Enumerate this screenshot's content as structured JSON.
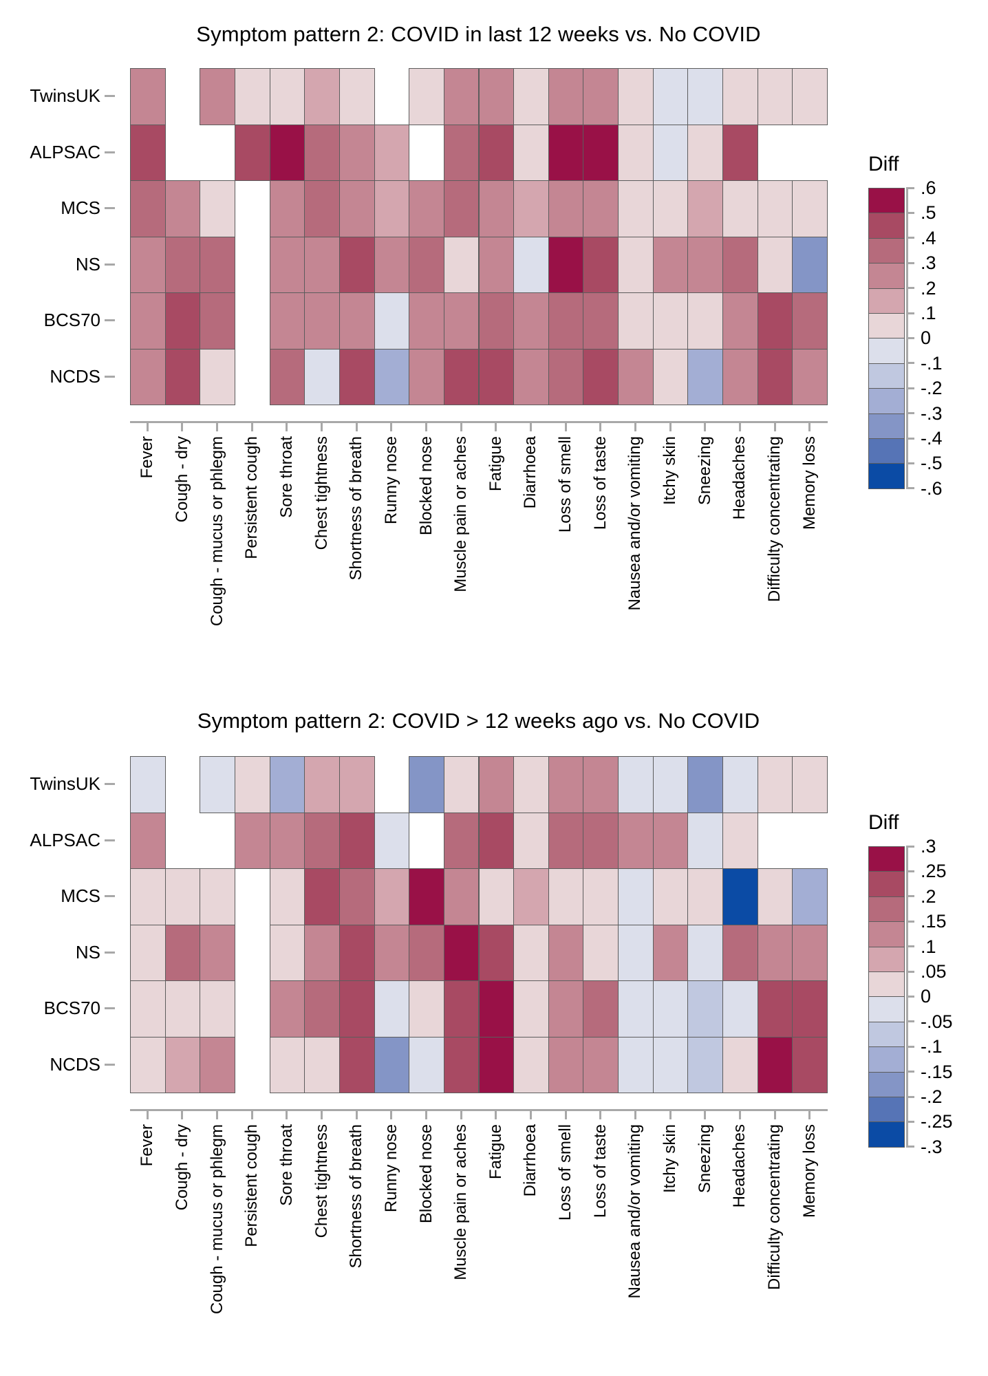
{
  "page": {
    "background": "#ffffff"
  },
  "palette": [
    "#991147",
    "#a84a63",
    "#b66b7c",
    "#c48693",
    "#d4a6af",
    "#e8d6d8",
    "#dcdfeb",
    "#c0c8e0",
    "#a3aed4",
    "#8495c6",
    "#5674b6",
    "#0b4ba5"
  ],
  "cohorts": [
    "TwinsUK",
    "ALPSAC",
    "MCS",
    "NS",
    "BCS70",
    "NCDS"
  ],
  "symptoms": [
    "Fever",
    "Cough - dry",
    "Cough - mucus or phlegm",
    "Persistent cough",
    "Sore throat",
    "Chest tightness",
    "Shortness of breath",
    "Runny nose",
    "Blocked nose",
    "Muscle pain or aches",
    "Fatigue",
    "Diarrhoea",
    "Loss of smell",
    "Loss of taste",
    "Nausea and/or vomiting",
    "Itchy skin",
    "Sneezing",
    "Headaches",
    "Difficulty concentrating",
    "Memory loss"
  ],
  "chart_data": [
    {
      "type": "heatmap",
      "title": "Symptom pattern 2: COVID in last 12 weeks vs. No COVID",
      "legend_title": "Diff",
      "legend_ticks": [
        ".6",
        ".5",
        ".4",
        ".3",
        ".2",
        ".1",
        "0",
        "-.1",
        "-.2",
        "-.3",
        "-.4",
        "-.5",
        "-.6"
      ],
      "scale_max": 0.6,
      "scale_step": 0.1,
      "rows": [
        "TwinsUK",
        "ALPSAC",
        "MCS",
        "NS",
        "BCS70",
        "NCDS"
      ],
      "columns": [
        "Fever",
        "Cough - dry",
        "Cough - mucus or phlegm",
        "Persistent cough",
        "Sore throat",
        "Chest tightness",
        "Shortness of breath",
        "Runny nose",
        "Blocked nose",
        "Muscle pain or aches",
        "Fatigue",
        "Diarrhoea",
        "Loss of smell",
        "Loss of taste",
        "Nausea and/or vomiting",
        "Itchy skin",
        "Sneezing",
        "Headaches",
        "Difficulty concentrating",
        "Memory loss"
      ],
      "values": [
        [
          0.25,
          null,
          0.25,
          0.05,
          0.05,
          0.15,
          0.05,
          null,
          0.05,
          0.25,
          0.25,
          0.05,
          0.25,
          0.25,
          0.05,
          -0.05,
          -0.05,
          0.05,
          0.05,
          0.05
        ],
        [
          0.45,
          null,
          null,
          0.45,
          0.55,
          0.35,
          0.25,
          0.15,
          null,
          0.35,
          0.45,
          0.05,
          0.55,
          0.55,
          0.05,
          -0.05,
          0.05,
          0.45,
          null,
          null
        ],
        [
          0.35,
          0.25,
          0.05,
          null,
          0.25,
          0.35,
          0.25,
          0.15,
          0.25,
          0.35,
          0.25,
          0.15,
          0.25,
          0.25,
          0.05,
          0.05,
          0.15,
          0.05,
          0.05,
          0.05
        ],
        [
          0.25,
          0.35,
          0.35,
          null,
          0.25,
          0.25,
          0.45,
          0.25,
          0.35,
          0.05,
          0.25,
          -0.05,
          0.55,
          0.45,
          0.05,
          0.25,
          0.25,
          0.35,
          0.05,
          -0.35
        ],
        [
          0.25,
          0.45,
          0.35,
          null,
          0.25,
          0.25,
          0.25,
          -0.05,
          0.25,
          0.25,
          0.35,
          0.25,
          0.35,
          0.35,
          0.05,
          0.05,
          0.05,
          0.25,
          0.45,
          0.35
        ],
        [
          0.25,
          0.45,
          0.05,
          null,
          0.35,
          -0.05,
          0.45,
          -0.25,
          0.25,
          0.45,
          0.45,
          0.25,
          0.35,
          0.45,
          0.25,
          0.05,
          -0.25,
          0.25,
          0.45,
          0.25
        ]
      ]
    },
    {
      "type": "heatmap",
      "title": "Symptom pattern 2: COVID > 12 weeks ago vs. No COVID",
      "legend_title": "Diff",
      "legend_ticks": [
        ".3",
        ".25",
        ".2",
        ".15",
        ".1",
        ".05",
        "0",
        "-.05",
        "-.1",
        "-.15",
        "-.2",
        "-.25",
        "-.3"
      ],
      "scale_max": 0.3,
      "scale_step": 0.05,
      "rows": [
        "TwinsUK",
        "ALPSAC",
        "MCS",
        "NS",
        "BCS70",
        "NCDS"
      ],
      "columns": [
        "Fever",
        "Cough - dry",
        "Cough - mucus or phlegm",
        "Persistent cough",
        "Sore throat",
        "Chest tightness",
        "Shortness of breath",
        "Runny nose",
        "Blocked nose",
        "Muscle pain or aches",
        "Fatigue",
        "Diarrhoea",
        "Loss of smell",
        "Loss of taste",
        "Nausea and/or vomiting",
        "Itchy skin",
        "Sneezing",
        "Headaches",
        "Difficulty concentrating",
        "Memory loss"
      ],
      "values": [
        [
          -0.025,
          null,
          -0.025,
          0.025,
          -0.125,
          0.075,
          0.075,
          null,
          -0.175,
          0.025,
          0.125,
          0.025,
          0.125,
          0.125,
          -0.025,
          -0.025,
          -0.175,
          -0.025,
          0.025,
          0.025
        ],
        [
          0.125,
          null,
          null,
          0.125,
          0.125,
          0.175,
          0.225,
          -0.025,
          null,
          0.175,
          0.225,
          0.025,
          0.175,
          0.175,
          0.125,
          0.125,
          -0.025,
          0.025,
          null,
          null
        ],
        [
          0.025,
          0.025,
          0.025,
          null,
          0.025,
          0.225,
          0.175,
          0.075,
          0.275,
          0.125,
          0.025,
          0.075,
          0.025,
          0.025,
          -0.025,
          0.025,
          0.025,
          -0.275,
          0.025,
          -0.125
        ],
        [
          0.025,
          0.175,
          0.125,
          null,
          0.025,
          0.125,
          0.225,
          0.125,
          0.175,
          0.275,
          0.225,
          0.025,
          0.125,
          0.025,
          -0.025,
          0.125,
          -0.025,
          0.175,
          0.125,
          0.125
        ],
        [
          0.025,
          0.025,
          0.025,
          null,
          0.125,
          0.175,
          0.225,
          -0.025,
          0.025,
          0.225,
          0.275,
          0.025,
          0.125,
          0.175,
          -0.025,
          -0.025,
          -0.075,
          -0.025,
          0.225,
          0.225
        ],
        [
          0.025,
          0.075,
          0.125,
          null,
          0.025,
          0.025,
          0.225,
          -0.175,
          -0.025,
          0.225,
          0.275,
          0.025,
          0.125,
          0.125,
          -0.025,
          -0.025,
          -0.075,
          0.025,
          0.275,
          0.225
        ]
      ]
    }
  ]
}
